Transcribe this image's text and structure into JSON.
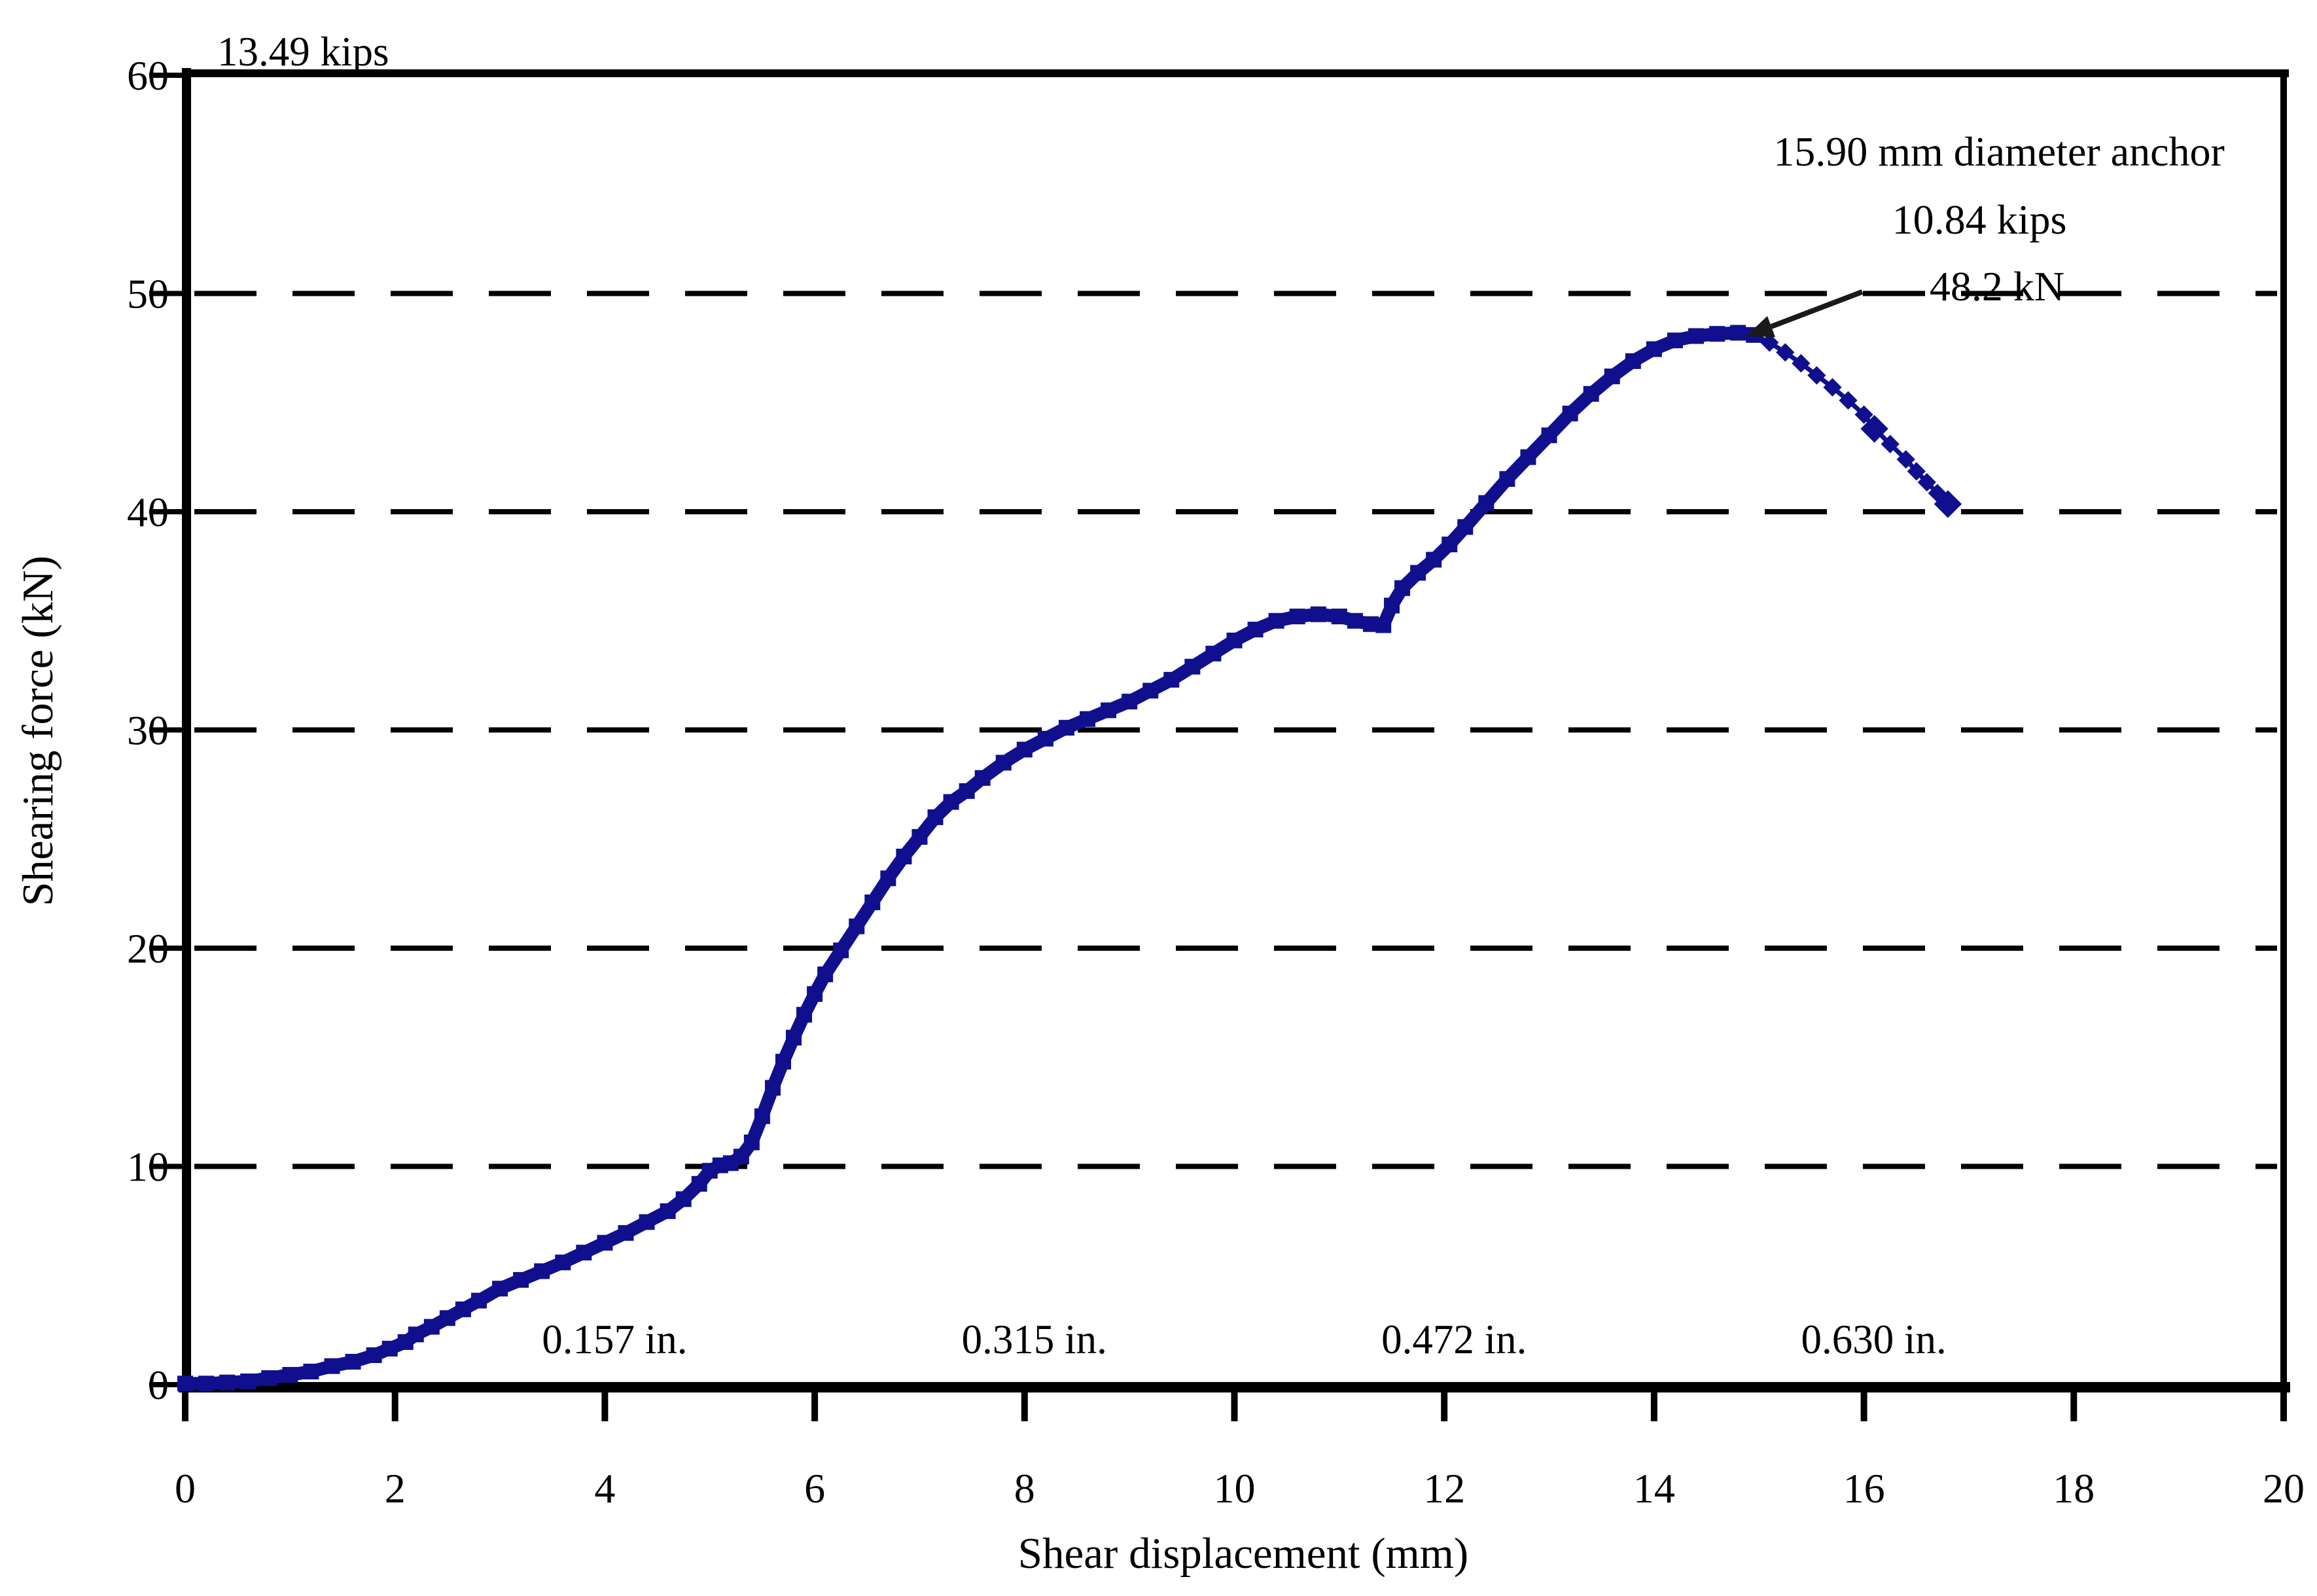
{
  "figure": {
    "background": "#ffffff",
    "top_left_annotation": "13.49 kips",
    "anchor_annotation": [
      "15.90 mm diameter anchor",
      "10.84 kips",
      "48.2 kN"
    ]
  },
  "chart_data": {
    "type": "line",
    "title": "",
    "xlabel": "Shear displacement (mm)",
    "ylabel": "Shearing force (kN)",
    "xlim": [
      0,
      20
    ],
    "ylim": [
      0,
      60
    ],
    "xticks": [
      0,
      2,
      4,
      6,
      8,
      10,
      12,
      14,
      16,
      18,
      20
    ],
    "yticks": [
      0,
      10,
      20,
      30,
      40,
      50,
      60
    ],
    "grid": {
      "horizontal_dashed_at": [
        10,
        20,
        30,
        40,
        50
      ]
    },
    "legend_position": "none",
    "peak_annotation": {
      "label": "48.2 kN",
      "kips_label": "10.84 kips",
      "x_mm": 14.8,
      "y_kN": 48.2
    },
    "y_axis_top_in_kips": "13.49 kips",
    "inch_equivalent_labels": [
      {
        "text": "0.157 in.",
        "x_mm": 4
      },
      {
        "text": "0.315 in.",
        "x_mm": 8
      },
      {
        "text": "0.472 in.",
        "x_mm": 12
      },
      {
        "text": "0.630 in.",
        "x_mm": 16
      }
    ],
    "series": [
      {
        "name": "15.90 mm diameter anchor",
        "color": "#10108e",
        "points_mm_kN": [
          [
            0,
            0.05
          ],
          [
            0.2,
            0.05
          ],
          [
            0.4,
            0.1
          ],
          [
            0.6,
            0.15
          ],
          [
            0.8,
            0.3
          ],
          [
            1.0,
            0.45
          ],
          [
            1.2,
            0.6
          ],
          [
            1.4,
            0.85
          ],
          [
            1.6,
            1.05
          ],
          [
            1.8,
            1.35
          ],
          [
            1.95,
            1.65
          ],
          [
            2.1,
            1.95
          ],
          [
            2.2,
            2.3
          ],
          [
            2.35,
            2.65
          ],
          [
            2.5,
            3.05
          ],
          [
            2.65,
            3.45
          ],
          [
            2.8,
            3.85
          ],
          [
            3.0,
            4.4
          ],
          [
            3.2,
            4.8
          ],
          [
            3.4,
            5.2
          ],
          [
            3.6,
            5.6
          ],
          [
            3.8,
            6.05
          ],
          [
            4.0,
            6.5
          ],
          [
            4.2,
            6.95
          ],
          [
            4.4,
            7.45
          ],
          [
            4.6,
            7.95
          ],
          [
            4.75,
            8.5
          ],
          [
            4.9,
            9.2
          ],
          [
            5.0,
            9.8
          ],
          [
            5.1,
            10.05
          ],
          [
            5.2,
            10.15
          ],
          [
            5.3,
            10.45
          ],
          [
            5.4,
            11.1
          ],
          [
            5.5,
            12.3
          ],
          [
            5.6,
            13.6
          ],
          [
            5.7,
            14.8
          ],
          [
            5.8,
            15.9
          ],
          [
            5.9,
            16.95
          ],
          [
            6.0,
            17.9
          ],
          [
            6.1,
            18.8
          ],
          [
            6.25,
            19.9
          ],
          [
            6.4,
            21.0
          ],
          [
            6.55,
            22.1
          ],
          [
            6.7,
            23.2
          ],
          [
            6.85,
            24.2
          ],
          [
            7.0,
            25.1
          ],
          [
            7.15,
            26.0
          ],
          [
            7.3,
            26.7
          ],
          [
            7.45,
            27.2
          ],
          [
            7.6,
            27.8
          ],
          [
            7.8,
            28.5
          ],
          [
            8.0,
            29.1
          ],
          [
            8.2,
            29.6
          ],
          [
            8.4,
            30.1
          ],
          [
            8.6,
            30.5
          ],
          [
            8.8,
            30.9
          ],
          [
            9.0,
            31.3
          ],
          [
            9.2,
            31.8
          ],
          [
            9.4,
            32.3
          ],
          [
            9.6,
            32.9
          ],
          [
            9.8,
            33.5
          ],
          [
            10.0,
            34.1
          ],
          [
            10.2,
            34.6
          ],
          [
            10.4,
            35.0
          ],
          [
            10.6,
            35.2
          ],
          [
            10.8,
            35.3
          ],
          [
            11.0,
            35.2
          ],
          [
            11.15,
            35.0
          ],
          [
            11.3,
            34.85
          ],
          [
            11.42,
            34.8
          ],
          [
            11.5,
            35.7
          ],
          [
            11.6,
            36.5
          ],
          [
            11.75,
            37.2
          ],
          [
            11.9,
            37.8
          ],
          [
            12.05,
            38.5
          ],
          [
            12.2,
            39.3
          ],
          [
            12.4,
            40.4
          ],
          [
            12.6,
            41.5
          ],
          [
            12.8,
            42.5
          ],
          [
            13.0,
            43.5
          ],
          [
            13.2,
            44.5
          ],
          [
            13.4,
            45.4
          ],
          [
            13.6,
            46.2
          ],
          [
            13.8,
            46.9
          ],
          [
            14.0,
            47.45
          ],
          [
            14.2,
            47.85
          ],
          [
            14.4,
            48.05
          ],
          [
            14.6,
            48.15
          ],
          [
            14.8,
            48.2
          ],
          [
            14.95,
            48.1
          ]
        ],
        "tail_points_mm_kN": [
          [
            15.1,
            47.75
          ],
          [
            15.25,
            47.3
          ],
          [
            15.4,
            46.8
          ],
          [
            15.55,
            46.25
          ],
          [
            15.7,
            45.7
          ],
          [
            15.85,
            45.1
          ],
          [
            16.0,
            44.45
          ],
          [
            16.1,
            43.8
          ],
          [
            16.25,
            43.1
          ],
          [
            16.4,
            42.4
          ],
          [
            16.5,
            41.85
          ],
          [
            16.6,
            41.35
          ],
          [
            16.7,
            40.85
          ],
          [
            16.8,
            40.35
          ]
        ]
      }
    ]
  },
  "colors": {
    "curve": "#10108e",
    "axis": "#000000",
    "grid": "#000000",
    "text": "#000000",
    "arrow": "#1a1a1a"
  }
}
